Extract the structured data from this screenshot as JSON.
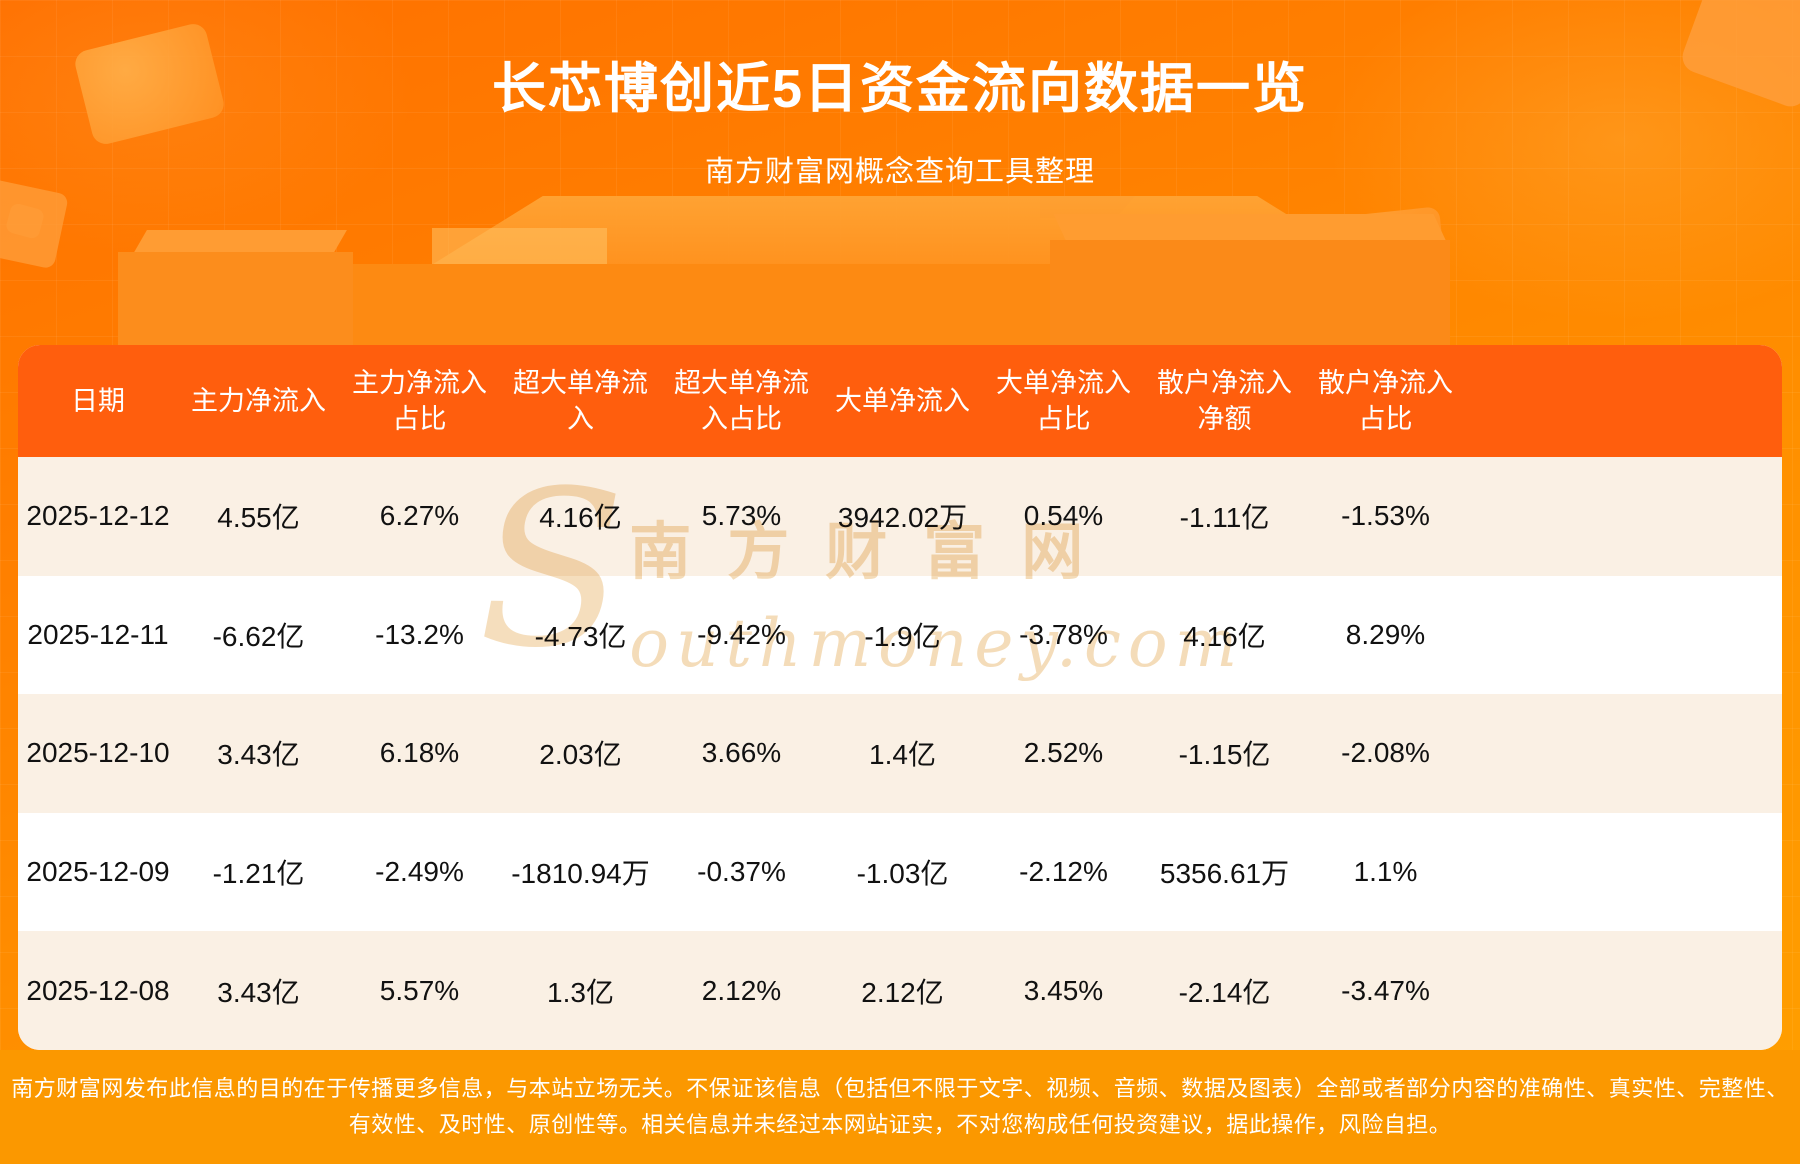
{
  "page": {
    "title": "长芯博创近5日资金流向数据一览",
    "subtitle": "南方财富网概念查询工具整理",
    "disclaimer": "南方财富网发布此信息的目的在于传播更多信息，与本站立场无关。不保证该信息（包括但不限于文字、视频、音频、数据及图表）全部或者部分内容的准确性、真实性、完整性、有效性、及时性、原创性等。相关信息并未经过本网站证实，不对您构成任何投资建议，据此操作，风险自担。"
  },
  "watermark": {
    "initial": "S",
    "cn": "南方财富网",
    "en_rest": "outhmoney.com"
  },
  "table": {
    "headers": [
      "日期",
      "主力净流入",
      "主力净流入占比",
      "超大单净流入",
      "超大单净流入占比",
      "大单净流入",
      "大单净流入占比",
      "散户净流入净额",
      "散户净流入占比"
    ],
    "rows": [
      [
        "2025-12-12",
        "4.55亿",
        "6.27%",
        "4.16亿",
        "5.73%",
        "3942.02万",
        "0.54%",
        "-1.11亿",
        "-1.53%"
      ],
      [
        "2025-12-11",
        "-6.62亿",
        "-13.2%",
        "-4.73亿",
        "-9.42%",
        "-1.9亿",
        "-3.78%",
        "4.16亿",
        "8.29%"
      ],
      [
        "2025-12-10",
        "3.43亿",
        "6.18%",
        "2.03亿",
        "3.66%",
        "1.4亿",
        "2.52%",
        "-1.15亿",
        "-2.08%"
      ],
      [
        "2025-12-09",
        "-1.21亿",
        "-2.49%",
        "-1810.94万",
        "-0.37%",
        "-1.03亿",
        "-2.12%",
        "5356.61万",
        "1.1%"
      ],
      [
        "2025-12-08",
        "3.43亿",
        "5.57%",
        "1.3亿",
        "2.12%",
        "2.12亿",
        "3.45%",
        "-2.14亿",
        "-3.47%"
      ]
    ]
  },
  "chart_data": {
    "type": "table",
    "title": "长芯博创近5日资金流向数据一览",
    "subtitle": "南方财富网概念查询工具整理",
    "columns": [
      "日期",
      "主力净流入",
      "主力净流入占比",
      "超大单净流入",
      "超大单净流入占比",
      "大单净流入",
      "大单净流入占比",
      "散户净流入净额",
      "散户净流入占比"
    ],
    "rows": [
      [
        "2025-12-12",
        "4.55亿",
        "6.27%",
        "4.16亿",
        "5.73%",
        "3942.02万",
        "0.54%",
        "-1.11亿",
        "-1.53%"
      ],
      [
        "2025-12-11",
        "-6.62亿",
        "-13.2%",
        "-4.73亿",
        "-9.42%",
        "-1.9亿",
        "-3.78%",
        "4.16亿",
        "8.29%"
      ],
      [
        "2025-12-10",
        "3.43亿",
        "6.18%",
        "2.03亿",
        "3.66%",
        "1.4亿",
        "2.52%",
        "-1.15亿",
        "-2.08%"
      ],
      [
        "2025-12-09",
        "-1.21亿",
        "-2.49%",
        "-1810.94万",
        "-0.37%",
        "-1.03亿",
        "-2.12%",
        "5356.61万",
        "1.1%"
      ],
      [
        "2025-12-08",
        "3.43亿",
        "5.57%",
        "1.3亿",
        "2.12%",
        "2.12亿",
        "3.45%",
        "-2.14亿",
        "-3.47%"
      ]
    ]
  },
  "colors": {
    "header_bg": "#ff5e0d",
    "row_alt_bg": "#faf0e4",
    "row_bg": "#ffffff",
    "footer_bg": "#fb9800",
    "accent_orange": "#ff8c00",
    "text": "#111111"
  }
}
